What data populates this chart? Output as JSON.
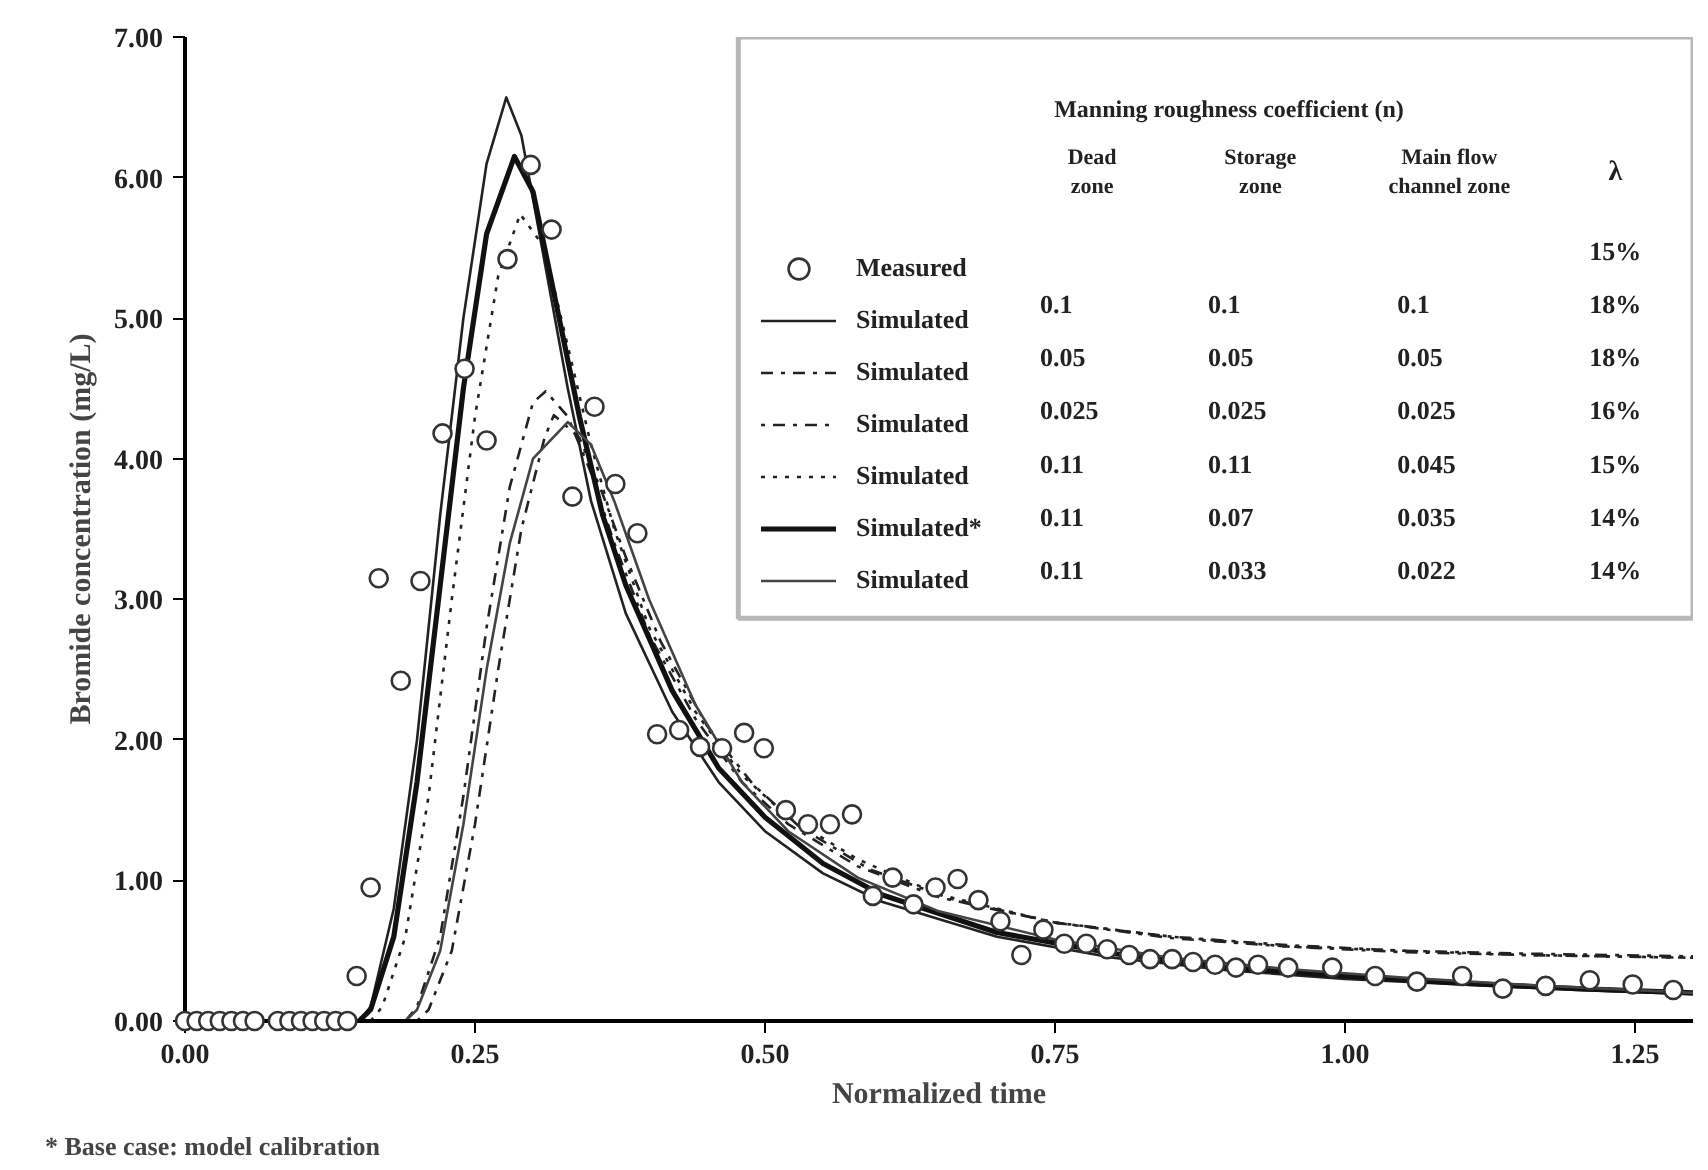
{
  "chart_data": {
    "type": "line",
    "xlabel": "Normalized time",
    "ylabel": "Bromide concentration (mg/L)",
    "legend_title": "Manning roughness coefficient (n)",
    "legend": "top right",
    "xlim": [
      0,
      1.3
    ],
    "xticks": [
      {
        "value": 0,
        "label": "0.00"
      },
      {
        "value": 0.25,
        "label": "0.25"
      },
      {
        "value": 0.5,
        "label": "0.50"
      },
      {
        "value": 0.75,
        "label": "0.75"
      },
      {
        "value": 1,
        "label": "1.00"
      },
      {
        "value": 1.25,
        "label": "1.25"
      }
    ],
    "ylim": [
      0,
      7
    ],
    "yticks": [
      {
        "value": 0,
        "label": "0.00"
      },
      {
        "value": 1,
        "label": "1.00"
      },
      {
        "value": 2,
        "label": "2.00"
      },
      {
        "value": 3,
        "label": "3.00"
      },
      {
        "value": 4,
        "label": "4.00"
      },
      {
        "value": 5,
        "label": "5.00"
      },
      {
        "value": 6,
        "label": "6.00"
      },
      {
        "value": 7,
        "label": "7.00"
      }
    ],
    "annotations": [
      "Dead zone",
      "Storage zone",
      "Main flow channel zone",
      "λ",
      "15%",
      "0.1",
      "0.1",
      "0.1",
      "18%",
      "0.05",
      "0.05",
      "0.05",
      "18%",
      "0.025",
      "0.025",
      "0.025",
      "16%",
      "0.11",
      "0.11",
      "0.045",
      "15%",
      "0.11",
      "0.07",
      "0.035",
      "14%",
      "0.11",
      "0.033",
      "0.022",
      "14%",
      "* Base case: model calibration"
    ],
    "series": [
      {
        "name": "Measured",
        "type": "scatter",
        "marker": "circle",
        "color": "#333333",
        "x": [
          0,
          0.01,
          0.02,
          0.03,
          0.04,
          0.05,
          0.06,
          0.08,
          0.09,
          0.1,
          0.11,
          0.12,
          0.13,
          0.14,
          0.148,
          0.16,
          0.167,
          0.186,
          0.203,
          0.222,
          0.241,
          0.26,
          0.278,
          0.298,
          0.316,
          0.334,
          0.353,
          0.371,
          0.39,
          0.407,
          0.426,
          0.444,
          0.463,
          0.482,
          0.499,
          0.518,
          0.537,
          0.556,
          0.575,
          0.593,
          0.61,
          0.628,
          0.647,
          0.666,
          0.684,
          0.703,
          0.721,
          0.74,
          0.758,
          0.777,
          0.795,
          0.814,
          0.832,
          0.851,
          0.869,
          0.888,
          0.906,
          0.925,
          0.951,
          0.989,
          1.026,
          1.062,
          1.101,
          1.136,
          1.173,
          1.211,
          1.248,
          1.283
        ],
        "values": [
          0,
          0,
          0,
          0,
          0,
          0,
          0,
          0,
          0,
          0,
          0,
          0,
          0,
          0,
          0.32,
          0.95,
          3.15,
          2.42,
          3.13,
          4.18,
          4.64,
          4.13,
          5.42,
          6.09,
          5.63,
          3.73,
          4.37,
          3.82,
          3.47,
          2.04,
          2.07,
          1.95,
          1.94,
          2.05,
          1.94,
          1.5,
          1.4,
          1.4,
          1.47,
          0.89,
          1.02,
          0.83,
          0.95,
          1.01,
          0.86,
          0.71,
          0.47,
          0.65,
          0.55,
          0.55,
          0.51,
          0.47,
          0.44,
          0.44,
          0.42,
          0.4,
          0.38,
          0.4,
          0.38,
          0.38,
          0.32,
          0.28,
          0.32,
          0.23,
          0.25,
          0.29,
          0.26,
          0.22
        ]
      },
      {
        "name": "Simulated",
        "line_style": "solid",
        "color": "#222222",
        "x": [
          0.15,
          0.16,
          0.18,
          0.2,
          0.22,
          0.24,
          0.26,
          0.277,
          0.29,
          0.31,
          0.33,
          0.35,
          0.38,
          0.42,
          0.46,
          0.5,
          0.55,
          0.6,
          0.7,
          0.8,
          0.9,
          1.0,
          1.1,
          1.2,
          1.3
        ],
        "values": [
          0,
          0.1,
          0.8,
          2.0,
          3.6,
          5.0,
          6.1,
          6.57,
          6.3,
          5.4,
          4.5,
          3.7,
          2.9,
          2.2,
          1.7,
          1.35,
          1.05,
          0.85,
          0.6,
          0.45,
          0.36,
          0.3,
          0.26,
          0.22,
          0.19
        ]
      },
      {
        "name": "Simulated",
        "line_style": "dashdot",
        "color": "#222222",
        "x": [
          0.19,
          0.2,
          0.22,
          0.24,
          0.26,
          0.28,
          0.3,
          0.311,
          0.33,
          0.35,
          0.37,
          0.4,
          0.44,
          0.48,
          0.52,
          0.58,
          0.65,
          0.75,
          0.85,
          0.95,
          1.05,
          1.15,
          1.3
        ],
        "values": [
          0,
          0.1,
          0.6,
          1.6,
          2.8,
          3.8,
          4.4,
          4.48,
          4.3,
          3.9,
          3.4,
          2.75,
          2.15,
          1.7,
          1.4,
          1.1,
          0.88,
          0.7,
          0.6,
          0.54,
          0.5,
          0.48,
          0.46
        ]
      },
      {
        "name": "Simulated",
        "line_style": "dotdash",
        "color": "#222222",
        "x": [
          0.2,
          0.21,
          0.23,
          0.25,
          0.27,
          0.29,
          0.31,
          0.318,
          0.34,
          0.36,
          0.38,
          0.41,
          0.45,
          0.49,
          0.53,
          0.59,
          0.66,
          0.75,
          0.85,
          0.95,
          1.05,
          1.15,
          1.3
        ],
        "values": [
          0,
          0.08,
          0.5,
          1.4,
          2.5,
          3.5,
          4.15,
          4.31,
          4.15,
          3.75,
          3.3,
          2.7,
          2.1,
          1.68,
          1.38,
          1.08,
          0.87,
          0.7,
          0.59,
          0.53,
          0.49,
          0.47,
          0.45
        ]
      },
      {
        "name": "Simulated",
        "line_style": "dotted",
        "color": "#222222",
        "x": [
          0.16,
          0.17,
          0.19,
          0.21,
          0.23,
          0.25,
          0.27,
          0.289,
          0.31,
          0.33,
          0.35,
          0.37,
          0.4,
          0.44,
          0.48,
          0.52,
          0.58,
          0.65,
          0.75,
          0.85,
          0.95,
          1.05,
          1.15,
          1.3
        ],
        "values": [
          0,
          0.1,
          0.6,
          1.6,
          3.0,
          4.3,
          5.3,
          5.74,
          5.5,
          4.8,
          4.1,
          3.5,
          2.8,
          2.2,
          1.75,
          1.45,
          1.15,
          0.9,
          0.7,
          0.6,
          0.53,
          0.5,
          0.47,
          0.45
        ]
      },
      {
        "name": "Simulated*",
        "line_style": "solid",
        "color": "#111111",
        "x": [
          0.15,
          0.16,
          0.18,
          0.2,
          0.22,
          0.24,
          0.26,
          0.284,
          0.3,
          0.32,
          0.34,
          0.36,
          0.38,
          0.42,
          0.46,
          0.5,
          0.55,
          0.6,
          0.7,
          0.8,
          0.9,
          1.0,
          1.1,
          1.2,
          1.3
        ],
        "values": [
          0,
          0.08,
          0.6,
          1.7,
          3.1,
          4.5,
          5.6,
          6.15,
          5.9,
          5.1,
          4.3,
          3.6,
          3.1,
          2.35,
          1.8,
          1.45,
          1.12,
          0.9,
          0.63,
          0.48,
          0.38,
          0.32,
          0.27,
          0.23,
          0.2
        ]
      },
      {
        "name": "Simulated",
        "line_style": "solid",
        "color": "#444444",
        "x": [
          0.19,
          0.2,
          0.22,
          0.24,
          0.26,
          0.28,
          0.3,
          0.33,
          0.35,
          0.37,
          0.4,
          0.44,
          0.48,
          0.52,
          0.58,
          0.65,
          0.75,
          0.85,
          0.95,
          1.05,
          1.15,
          1.3
        ],
        "values": [
          0,
          0.08,
          0.5,
          1.4,
          2.5,
          3.4,
          4.0,
          4.26,
          4.1,
          3.7,
          3.0,
          2.25,
          1.7,
          1.35,
          1.02,
          0.78,
          0.58,
          0.45,
          0.37,
          0.31,
          0.26,
          0.2
        ]
      }
    ]
  }
}
